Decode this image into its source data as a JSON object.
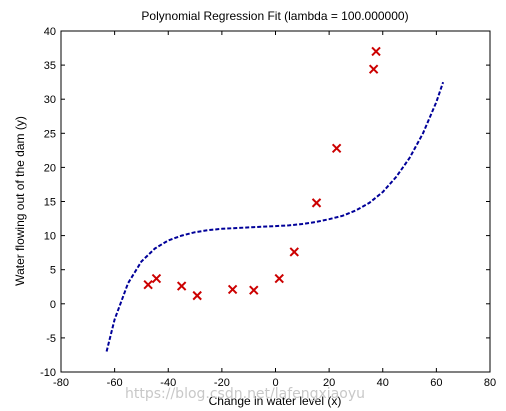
{
  "chart_data": {
    "type": "scatter",
    "title": "Polynomial Regression Fit (lambda = 100.000000)",
    "xlabel": "Change in water level (x)",
    "ylabel": "Water flowing out of the dam (y)",
    "xlim": [
      -80,
      80
    ],
    "ylim": [
      -10,
      40
    ],
    "xticks": [
      -80,
      -60,
      -40,
      -20,
      0,
      20,
      40,
      60,
      80
    ],
    "yticks": [
      -10,
      -5,
      0,
      5,
      10,
      15,
      20,
      25,
      30,
      35,
      40
    ],
    "grid": false,
    "points": {
      "marker": "x",
      "color": "#cc0000",
      "x": [
        -47.5,
        -44.4,
        -35.0,
        -29.2,
        -16.0,
        -8.1,
        1.4,
        7.0,
        15.3,
        22.8,
        36.6,
        37.5
      ],
      "y": [
        2.8,
        3.7,
        2.6,
        1.2,
        2.1,
        2.0,
        3.7,
        7.6,
        14.8,
        22.8,
        34.4,
        37.0
      ]
    },
    "fit_curve": {
      "style": "dashed",
      "color": "#000099",
      "x": [
        -63,
        -60,
        -55,
        -50,
        -45,
        -40,
        -35,
        -30,
        -25,
        -20,
        -15,
        -10,
        -5,
        0,
        5,
        10,
        15,
        20,
        25,
        30,
        35,
        40,
        45,
        50,
        55,
        60,
        62.5
      ],
      "y": [
        -7.0,
        -2.3,
        3.0,
        6.2,
        8.1,
        9.3,
        10.0,
        10.5,
        10.8,
        11.0,
        11.1,
        11.2,
        11.3,
        11.4,
        11.5,
        11.7,
        12.0,
        12.4,
        12.9,
        13.7,
        14.8,
        16.4,
        18.6,
        21.4,
        25.0,
        29.6,
        32.5
      ]
    }
  },
  "watermark": "https://blog.csdn.net/lafengxiaoyu"
}
